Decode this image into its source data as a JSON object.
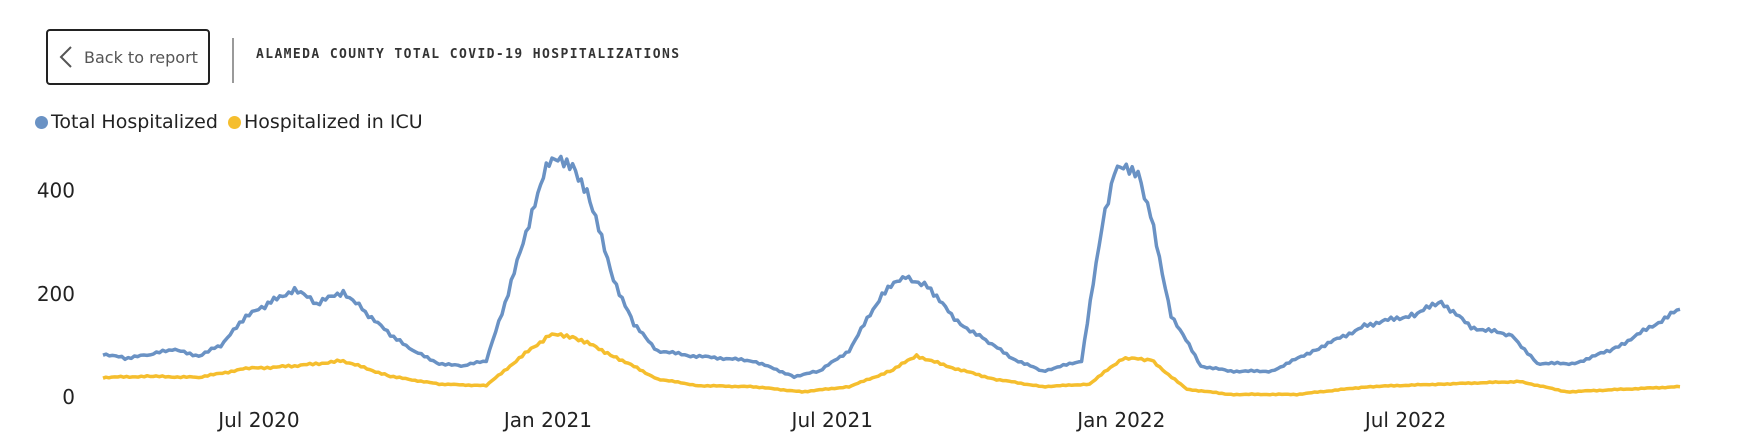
{
  "header": {
    "back_label": "Back to report",
    "title": "ALAMEDA COUNTY TOTAL COVID-19 HOSPITALIZATIONS"
  },
  "icons": {
    "back": "chevron-left-icon"
  },
  "chart_data": {
    "type": "line",
    "title": "ALAMEDA COUNTY TOTAL COVID-19 HOSPITALIZATIONS",
    "xlabel": "",
    "ylabel": "",
    "x_ticks": [
      "Jul 2020",
      "Jan 2021",
      "Jul 2021",
      "Jan 2022",
      "Jul 2022"
    ],
    "y_ticks": [
      0,
      200,
      400
    ],
    "ylim": [
      0,
      470
    ],
    "grid": false,
    "legend_position": "top-left",
    "x_range": [
      "2020-04-01",
      "2022-12-31"
    ],
    "series": [
      {
        "name": "Total Hospitalized",
        "color": "#6A92C4",
        "points": [
          [
            "2020-04-01",
            84
          ],
          [
            "2020-04-15",
            75
          ],
          [
            "2020-05-01",
            82
          ],
          [
            "2020-05-15",
            92
          ],
          [
            "2020-06-01",
            80
          ],
          [
            "2020-06-15",
            100
          ],
          [
            "2020-07-01",
            155
          ],
          [
            "2020-07-15",
            180
          ],
          [
            "2020-08-01",
            210
          ],
          [
            "2020-08-15",
            180
          ],
          [
            "2020-09-01",
            205
          ],
          [
            "2020-09-15",
            165
          ],
          [
            "2020-10-01",
            120
          ],
          [
            "2020-10-15",
            90
          ],
          [
            "2020-11-01",
            65
          ],
          [
            "2020-11-15",
            60
          ],
          [
            "2020-12-01",
            70
          ],
          [
            "2020-12-15",
            200
          ],
          [
            "2021-01-01",
            380
          ],
          [
            "2021-01-10",
            455
          ],
          [
            "2021-01-25",
            455
          ],
          [
            "2021-02-05",
            380
          ],
          [
            "2021-02-20",
            230
          ],
          [
            "2021-03-05",
            140
          ],
          [
            "2021-03-20",
            90
          ],
          [
            "2021-04-10",
            80
          ],
          [
            "2021-05-01",
            75
          ],
          [
            "2021-05-20",
            70
          ],
          [
            "2021-06-15",
            40
          ],
          [
            "2021-07-01",
            50
          ],
          [
            "2021-07-20",
            90
          ],
          [
            "2021-08-10",
            200
          ],
          [
            "2021-08-25",
            235
          ],
          [
            "2021-09-10",
            210
          ],
          [
            "2021-09-25",
            150
          ],
          [
            "2021-10-15",
            110
          ],
          [
            "2021-11-01",
            75
          ],
          [
            "2021-11-20",
            50
          ],
          [
            "2021-12-15",
            70
          ],
          [
            "2021-12-28",
            330
          ],
          [
            "2022-01-05",
            440
          ],
          [
            "2022-01-20",
            440
          ],
          [
            "2022-01-28",
            350
          ],
          [
            "2022-02-10",
            160
          ],
          [
            "2022-03-01",
            60
          ],
          [
            "2022-03-20",
            50
          ],
          [
            "2022-04-15",
            50
          ],
          [
            "2022-05-15",
            95
          ],
          [
            "2022-06-15",
            140
          ],
          [
            "2022-07-15",
            160
          ],
          [
            "2022-08-01",
            185
          ],
          [
            "2022-08-20",
            135
          ],
          [
            "2022-09-15",
            120
          ],
          [
            "2022-10-01",
            65
          ],
          [
            "2022-10-25",
            65
          ],
          [
            "2022-11-20",
            95
          ],
          [
            "2022-12-31",
            170
          ]
        ]
      },
      {
        "name": "Hospitalized in ICU",
        "color": "#F5BE2E",
        "points": [
          [
            "2020-04-01",
            38
          ],
          [
            "2020-05-01",
            40
          ],
          [
            "2020-06-01",
            38
          ],
          [
            "2020-07-01",
            55
          ],
          [
            "2020-08-01",
            60
          ],
          [
            "2020-09-01",
            70
          ],
          [
            "2020-10-01",
            40
          ],
          [
            "2020-11-01",
            25
          ],
          [
            "2020-12-01",
            22
          ],
          [
            "2020-12-20",
            70
          ],
          [
            "2021-01-10",
            120
          ],
          [
            "2021-01-25",
            118
          ],
          [
            "2021-02-20",
            80
          ],
          [
            "2021-03-20",
            35
          ],
          [
            "2021-04-15",
            22
          ],
          [
            "2021-05-20",
            20
          ],
          [
            "2021-06-20",
            10
          ],
          [
            "2021-07-20",
            20
          ],
          [
            "2021-08-15",
            50
          ],
          [
            "2021-09-01",
            80
          ],
          [
            "2021-09-20",
            60
          ],
          [
            "2021-10-20",
            35
          ],
          [
            "2021-11-20",
            20
          ],
          [
            "2021-12-20",
            25
          ],
          [
            "2022-01-10",
            75
          ],
          [
            "2022-01-28",
            72
          ],
          [
            "2022-02-20",
            15
          ],
          [
            "2022-03-20",
            5
          ],
          [
            "2022-05-01",
            5
          ],
          [
            "2022-06-15",
            20
          ],
          [
            "2022-08-01",
            25
          ],
          [
            "2022-09-20",
            30
          ],
          [
            "2022-10-20",
            10
          ],
          [
            "2022-12-31",
            20
          ]
        ]
      }
    ]
  }
}
